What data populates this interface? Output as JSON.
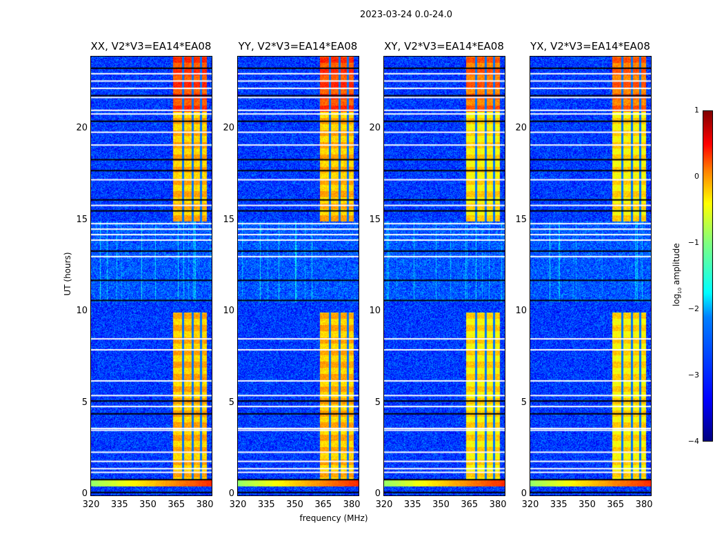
{
  "suptitle": "2023-03-24 0.0-24.0",
  "chart_data": {
    "type": "heatmap",
    "xlabel": "frequency (MHz)",
    "ylabel": "UT (hours)",
    "xlim": [
      320,
      383.6
    ],
    "ylim": [
      0,
      24
    ],
    "xticks": [
      "320",
      "335",
      "350",
      "365",
      "380"
    ],
    "yticks": [
      "0",
      "5",
      "10",
      "15",
      "20"
    ],
    "panels": [
      {
        "title": "XX, V2*V3=EA14*EA08"
      },
      {
        "title": "YY, V2*V3=EA14*EA08"
      },
      {
        "title": "XY, V2*V3=EA14*EA08"
      },
      {
        "title": "YX, V2*V3=EA14*EA08"
      }
    ],
    "colorbar": {
      "label_main": "log",
      "label_sub": "10",
      "label_rest": " amplitude",
      "range": [
        -4,
        1
      ],
      "ticks": [
        "1",
        "0",
        "−1",
        "−2",
        "−3",
        "−4"
      ],
      "colormap": "jet"
    },
    "strong_rfi_band_mhz": [
      363,
      381
    ],
    "rfi_active_hours": [
      [
        0.9,
        10
      ],
      [
        15,
        24
      ]
    ],
    "white_flag_hours": [
      1.3,
      1.5,
      1.9,
      2.4,
      3.6,
      3.7,
      4.9,
      5.5,
      6.3,
      8.0,
      8.6,
      13.1,
      14.0,
      14.3,
      14.6,
      14.9,
      15.9,
      17.3,
      19.2,
      19.9,
      20.9,
      21.1,
      21.8,
      22.3,
      22.7,
      23.1
    ],
    "black_flag_hours": [
      0.2,
      0.9,
      4.5,
      5.2,
      10.7,
      11.8,
      13.4,
      15.6,
      16.2,
      17.8,
      18.4,
      20.5,
      21.9,
      23.4
    ]
  }
}
